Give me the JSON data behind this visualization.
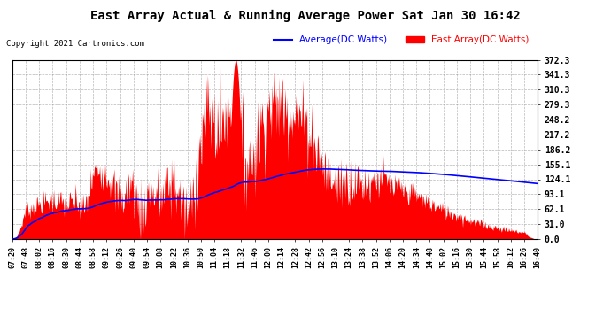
{
  "title": "East Array Actual & Running Average Power Sat Jan 30 16:42",
  "copyright": "Copyright 2021 Cartronics.com",
  "legend_avg": "Average(DC Watts)",
  "legend_east": "East Array(DC Watts)",
  "y_ticks": [
    0.0,
    31.0,
    62.1,
    93.1,
    124.1,
    155.1,
    186.2,
    217.2,
    248.2,
    279.3,
    310.3,
    341.3,
    372.3
  ],
  "ylim": [
    0,
    372.3
  ],
  "x_labels": [
    "07:20",
    "07:48",
    "08:02",
    "08:16",
    "08:30",
    "08:44",
    "08:58",
    "09:12",
    "09:26",
    "09:40",
    "09:54",
    "10:08",
    "10:22",
    "10:36",
    "10:50",
    "11:04",
    "11:18",
    "11:32",
    "11:46",
    "12:00",
    "12:14",
    "12:28",
    "12:42",
    "12:56",
    "13:10",
    "13:24",
    "13:38",
    "13:52",
    "14:06",
    "14:20",
    "14:34",
    "14:48",
    "15:02",
    "15:16",
    "15:30",
    "15:44",
    "15:58",
    "16:12",
    "16:26",
    "16:40"
  ],
  "background_color": "#ffffff",
  "plot_bg_color": "#ffffff",
  "grid_color": "#888888",
  "area_color": "#ff0000",
  "line_color": "#0000ff",
  "title_color": "#000000",
  "copyright_color": "#000000",
  "legend_avg_color": "#0000ff",
  "legend_east_color": "#ff0000",
  "figsize": [
    6.9,
    3.75
  ],
  "dpi": 100
}
